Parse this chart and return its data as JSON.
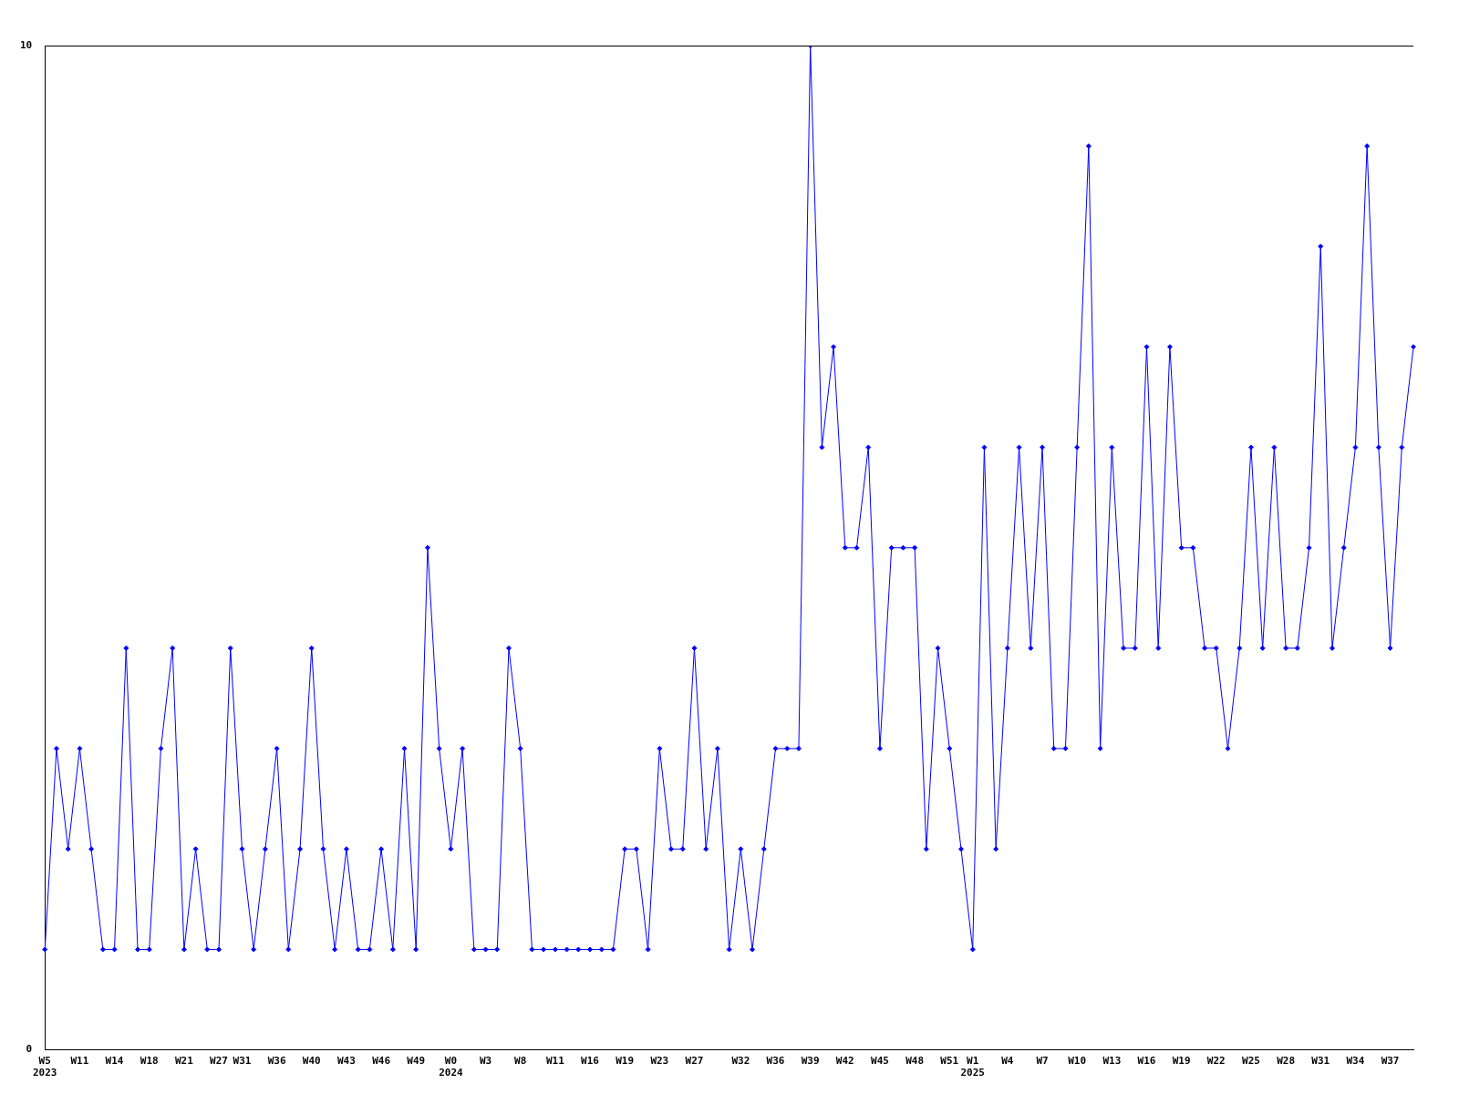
{
  "chart_data": {
    "type": "line",
    "categories": [
      "W5\n2023",
      null,
      null,
      "W11",
      null,
      null,
      "W14",
      null,
      null,
      "W18",
      null,
      null,
      "W21",
      null,
      null,
      "W27",
      null,
      "W31",
      null,
      null,
      "W36",
      null,
      null,
      "W40",
      null,
      null,
      "W43",
      null,
      null,
      "W46",
      null,
      null,
      "W49",
      null,
      null,
      "W0\n2024",
      null,
      null,
      "W3",
      null,
      null,
      "W8",
      null,
      null,
      "W11",
      null,
      null,
      "W16",
      null,
      null,
      "W19",
      null,
      null,
      "W23",
      null,
      null,
      "W27",
      null,
      null,
      null,
      "W32",
      null,
      null,
      "W36",
      null,
      null,
      "W39",
      null,
      null,
      "W42",
      null,
      null,
      "W45",
      null,
      null,
      "W48",
      null,
      null,
      "W51",
      null,
      "W1\n2025",
      null,
      null,
      "W4",
      null,
      null,
      "W7",
      null,
      null,
      "W10",
      null,
      null,
      "W13",
      null,
      null,
      "W16",
      null,
      null,
      "W19",
      null,
      null,
      "W22",
      null,
      null,
      "W25",
      null,
      null,
      "W28",
      null,
      null,
      "W31",
      null,
      null,
      "W34",
      null,
      null,
      "W37",
      null,
      null
    ],
    "series": [
      {
        "color": "#0000ff",
        "values": [
          1,
          3,
          2,
          3,
          2,
          1,
          1,
          4,
          1,
          1,
          3,
          4,
          1,
          2,
          1,
          1,
          4,
          2,
          1,
          2,
          3,
          1,
          2,
          4,
          2,
          1,
          2,
          1,
          1,
          2,
          1,
          3,
          1,
          5,
          3,
          2,
          3,
          1,
          1,
          1,
          4,
          3,
          1,
          1,
          1,
          1,
          1,
          1,
          1,
          1,
          2,
          2,
          1,
          3,
          2,
          2,
          4,
          2,
          3,
          1,
          2,
          1,
          2,
          3,
          3,
          3,
          10,
          6,
          7,
          5,
          5,
          6,
          3,
          5,
          5,
          5,
          2,
          4,
          3,
          2,
          1,
          6,
          2,
          4,
          6,
          4,
          6,
          3,
          3,
          6,
          9,
          3,
          6,
          4,
          4,
          7,
          4,
          7,
          5,
          5,
          4,
          4,
          3,
          4,
          6,
          4,
          6,
          4,
          4,
          5,
          8,
          4,
          5,
          6,
          9,
          6,
          4,
          6,
          7
        ]
      }
    ],
    "ylim": [
      0,
      10
    ],
    "yticks": [
      0,
      10
    ],
    "grid": false,
    "legend": false,
    "marker": "diamond",
    "line_style": "solid"
  }
}
